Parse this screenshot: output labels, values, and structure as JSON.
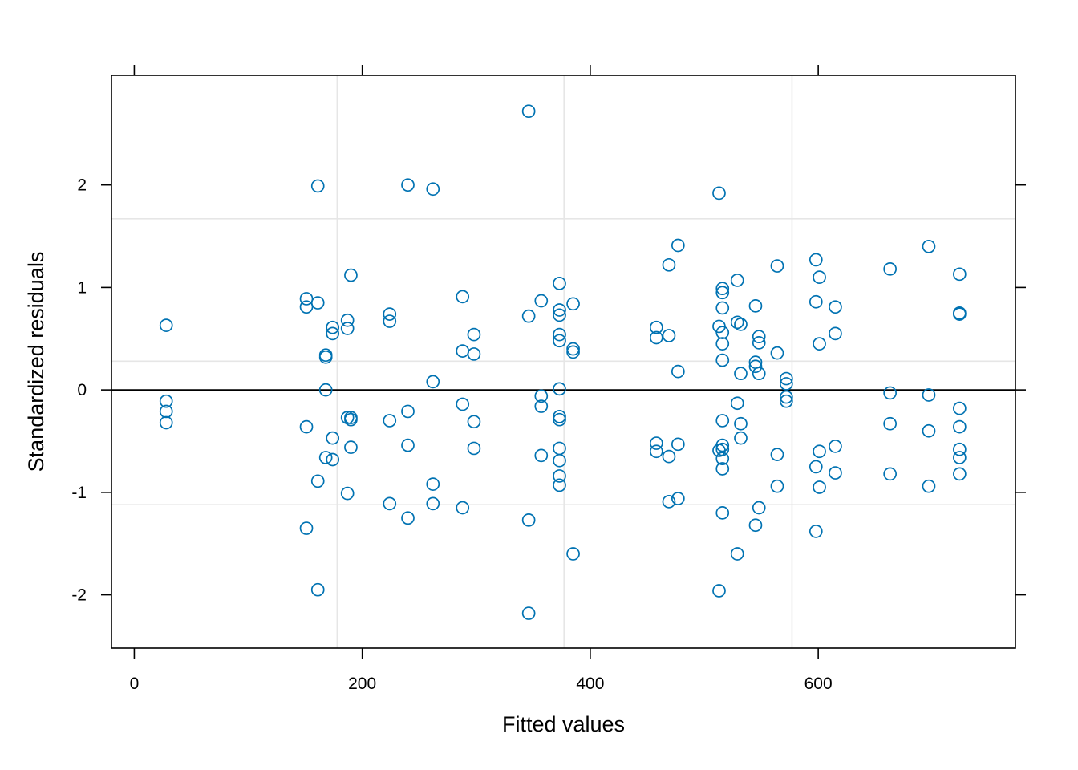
{
  "chart_data": {
    "type": "scatter",
    "title": "",
    "xlabel": "Fitted values",
    "ylabel": "Standardized residuals",
    "xlim": [
      -20,
      773
    ],
    "ylim": [
      -2.52,
      3.07
    ],
    "x_ticks": [
      0,
      200,
      400,
      600
    ],
    "y_ticks": [
      -2,
      -1,
      0,
      1,
      2
    ],
    "x_tick_labels": [
      "0",
      "200",
      "400",
      "600"
    ],
    "y_tick_labels": [
      "-2",
      "-1",
      "0",
      "1",
      "2"
    ],
    "reference_line_y": 0,
    "grid_x": [
      178,
      377,
      577
    ],
    "grid_y": [
      -1.12,
      0.28,
      1.67
    ],
    "point_color": "#0072B2",
    "points": [
      {
        "x": 28,
        "y": 0.63
      },
      {
        "x": 28,
        "y": -0.11
      },
      {
        "x": 28,
        "y": -0.21
      },
      {
        "x": 28,
        "y": -0.32
      },
      {
        "x": 151,
        "y": 0.89
      },
      {
        "x": 151,
        "y": 0.81
      },
      {
        "x": 151,
        "y": -0.36
      },
      {
        "x": 151,
        "y": -1.35
      },
      {
        "x": 161,
        "y": 1.99
      },
      {
        "x": 161,
        "y": 0.85
      },
      {
        "x": 161,
        "y": -0.89
      },
      {
        "x": 161,
        "y": -1.95
      },
      {
        "x": 168,
        "y": 0.34
      },
      {
        "x": 168,
        "y": 0.32
      },
      {
        "x": 168,
        "y": 0.0
      },
      {
        "x": 168,
        "y": -0.66
      },
      {
        "x": 174,
        "y": 0.61
      },
      {
        "x": 174,
        "y": 0.55
      },
      {
        "x": 174,
        "y": -0.47
      },
      {
        "x": 174,
        "y": -0.68
      },
      {
        "x": 187,
        "y": 0.68
      },
      {
        "x": 187,
        "y": 0.6
      },
      {
        "x": 187,
        "y": -0.27
      },
      {
        "x": 187,
        "y": -1.01
      },
      {
        "x": 190,
        "y": 1.12
      },
      {
        "x": 190,
        "y": -0.27
      },
      {
        "x": 190,
        "y": -0.29
      },
      {
        "x": 190,
        "y": -0.56
      },
      {
        "x": 224,
        "y": 0.74
      },
      {
        "x": 224,
        "y": 0.67
      },
      {
        "x": 224,
        "y": -0.3
      },
      {
        "x": 224,
        "y": -1.11
      },
      {
        "x": 240,
        "y": 2.0
      },
      {
        "x": 240,
        "y": -0.21
      },
      {
        "x": 240,
        "y": -0.54
      },
      {
        "x": 240,
        "y": -1.25
      },
      {
        "x": 262,
        "y": 1.96
      },
      {
        "x": 262,
        "y": 0.08
      },
      {
        "x": 262,
        "y": -0.92
      },
      {
        "x": 262,
        "y": -1.11
      },
      {
        "x": 288,
        "y": 0.91
      },
      {
        "x": 288,
        "y": 0.38
      },
      {
        "x": 288,
        "y": -0.14
      },
      {
        "x": 288,
        "y": -1.15
      },
      {
        "x": 298,
        "y": 0.54
      },
      {
        "x": 298,
        "y": 0.35
      },
      {
        "x": 298,
        "y": -0.31
      },
      {
        "x": 298,
        "y": -0.57
      },
      {
        "x": 346,
        "y": 2.72
      },
      {
        "x": 346,
        "y": 0.72
      },
      {
        "x": 346,
        "y": -1.27
      },
      {
        "x": 346,
        "y": -2.18
      },
      {
        "x": 357,
        "y": 0.87
      },
      {
        "x": 357,
        "y": -0.06
      },
      {
        "x": 357,
        "y": -0.16
      },
      {
        "x": 357,
        "y": -0.64
      },
      {
        "x": 373,
        "y": 1.04
      },
      {
        "x": 373,
        "y": 0.78
      },
      {
        "x": 373,
        "y": 0.73
      },
      {
        "x": 373,
        "y": 0.54
      },
      {
        "x": 373,
        "y": 0.48
      },
      {
        "x": 373,
        "y": 0.01
      },
      {
        "x": 373,
        "y": -0.26
      },
      {
        "x": 373,
        "y": -0.29
      },
      {
        "x": 373,
        "y": -0.57
      },
      {
        "x": 373,
        "y": -0.69
      },
      {
        "x": 373,
        "y": -0.84
      },
      {
        "x": 373,
        "y": -0.93
      },
      {
        "x": 385,
        "y": 0.84
      },
      {
        "x": 385,
        "y": 0.4
      },
      {
        "x": 385,
        "y": 0.37
      },
      {
        "x": 385,
        "y": -1.6
      },
      {
        "x": 458,
        "y": 0.61
      },
      {
        "x": 458,
        "y": 0.51
      },
      {
        "x": 458,
        "y": -0.52
      },
      {
        "x": 458,
        "y": -0.6
      },
      {
        "x": 469,
        "y": 1.22
      },
      {
        "x": 469,
        "y": 0.53
      },
      {
        "x": 469,
        "y": -0.65
      },
      {
        "x": 469,
        "y": -1.09
      },
      {
        "x": 477,
        "y": 1.41
      },
      {
        "x": 477,
        "y": 0.18
      },
      {
        "x": 477,
        "y": -0.53
      },
      {
        "x": 477,
        "y": -1.06
      },
      {
        "x": 513,
        "y": 1.92
      },
      {
        "x": 513,
        "y": 0.62
      },
      {
        "x": 513,
        "y": -0.59
      },
      {
        "x": 513,
        "y": -1.96
      },
      {
        "x": 516,
        "y": 0.99
      },
      {
        "x": 516,
        "y": 0.95
      },
      {
        "x": 516,
        "y": 0.8
      },
      {
        "x": 516,
        "y": 0.56
      },
      {
        "x": 516,
        "y": 0.45
      },
      {
        "x": 516,
        "y": 0.29
      },
      {
        "x": 516,
        "y": -0.3
      },
      {
        "x": 516,
        "y": -0.54
      },
      {
        "x": 516,
        "y": -0.58
      },
      {
        "x": 516,
        "y": -0.67
      },
      {
        "x": 516,
        "y": -0.77
      },
      {
        "x": 516,
        "y": -1.2
      },
      {
        "x": 529,
        "y": 1.07
      },
      {
        "x": 529,
        "y": 0.66
      },
      {
        "x": 529,
        "y": -0.13
      },
      {
        "x": 529,
        "y": -1.6
      },
      {
        "x": 532,
        "y": 0.64
      },
      {
        "x": 532,
        "y": 0.16
      },
      {
        "x": 532,
        "y": -0.33
      },
      {
        "x": 532,
        "y": -0.47
      },
      {
        "x": 545,
        "y": 0.82
      },
      {
        "x": 545,
        "y": 0.27
      },
      {
        "x": 545,
        "y": 0.23
      },
      {
        "x": 545,
        "y": -1.32
      },
      {
        "x": 548,
        "y": 0.52
      },
      {
        "x": 548,
        "y": 0.46
      },
      {
        "x": 548,
        "y": 0.16
      },
      {
        "x": 548,
        "y": -1.15
      },
      {
        "x": 564,
        "y": 1.21
      },
      {
        "x": 564,
        "y": 0.36
      },
      {
        "x": 564,
        "y": -0.63
      },
      {
        "x": 564,
        "y": -0.94
      },
      {
        "x": 572,
        "y": 0.11
      },
      {
        "x": 572,
        "y": 0.06
      },
      {
        "x": 572,
        "y": -0.07
      },
      {
        "x": 572,
        "y": -0.11
      },
      {
        "x": 598,
        "y": 1.27
      },
      {
        "x": 598,
        "y": 0.86
      },
      {
        "x": 598,
        "y": -0.75
      },
      {
        "x": 598,
        "y": -1.38
      },
      {
        "x": 601,
        "y": 1.1
      },
      {
        "x": 601,
        "y": 0.45
      },
      {
        "x": 601,
        "y": -0.6
      },
      {
        "x": 601,
        "y": -0.95
      },
      {
        "x": 615,
        "y": 0.81
      },
      {
        "x": 615,
        "y": 0.55
      },
      {
        "x": 615,
        "y": -0.55
      },
      {
        "x": 615,
        "y": -0.81
      },
      {
        "x": 663,
        "y": 1.18
      },
      {
        "x": 663,
        "y": -0.03
      },
      {
        "x": 663,
        "y": -0.33
      },
      {
        "x": 663,
        "y": -0.82
      },
      {
        "x": 697,
        "y": 1.4
      },
      {
        "x": 697,
        "y": -0.05
      },
      {
        "x": 697,
        "y": -0.4
      },
      {
        "x": 697,
        "y": -0.94
      },
      {
        "x": 724,
        "y": 1.13
      },
      {
        "x": 724,
        "y": 0.75
      },
      {
        "x": 724,
        "y": 0.74
      },
      {
        "x": 724,
        "y": -0.18
      },
      {
        "x": 724,
        "y": -0.36
      },
      {
        "x": 724,
        "y": -0.58
      },
      {
        "x": 724,
        "y": -0.66
      },
      {
        "x": 724,
        "y": -0.82
      }
    ]
  }
}
